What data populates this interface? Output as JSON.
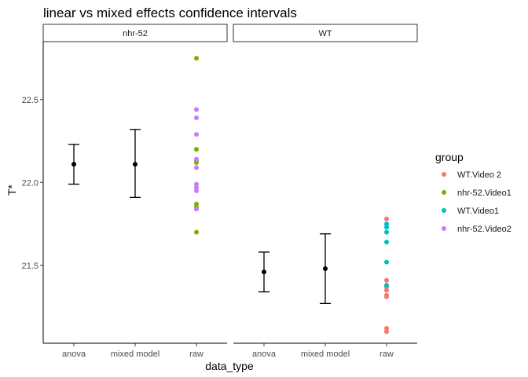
{
  "chart_data": {
    "type": "scatter",
    "title": "linear vs mixed effects confidence intervals",
    "xlabel": "data_type",
    "ylabel": "T*",
    "categories": [
      "anova",
      "mixed model",
      "raw"
    ],
    "ylim": [
      21.03,
      22.85
    ],
    "yticks": [
      21.5,
      22.0,
      22.5
    ],
    "ytick_labels": [
      "21.5",
      "22.0",
      "22.5"
    ],
    "grid": false,
    "legend": {
      "title": "group",
      "position": "right",
      "entries": [
        {
          "label": "WT.Video 2",
          "color": "#F8766D"
        },
        {
          "label": "nhr-52.Video1",
          "color": "#7CAE00"
        },
        {
          "label": "WT.Video1",
          "color": "#00BFC4"
        },
        {
          "label": "nhr-52.Video2",
          "color": "#C77CFF"
        }
      ]
    },
    "facets": [
      {
        "label": "nhr-52",
        "intervals": [
          {
            "category": "anova",
            "mean": 22.11,
            "lower": 21.99,
            "upper": 22.23
          },
          {
            "category": "mixed model",
            "mean": 22.11,
            "lower": 21.91,
            "upper": 22.32
          }
        ],
        "raw_points": [
          {
            "group": "nhr-52.Video1",
            "values": [
              22.75,
              22.2,
              22.13,
              22.12,
              21.87,
              21.85,
              21.7
            ]
          },
          {
            "group": "nhr-52.Video2",
            "values": [
              22.44,
              22.39,
              22.29,
              22.14,
              22.09,
              21.99,
              21.97,
              21.95,
              21.84
            ]
          }
        ]
      },
      {
        "label": "WT",
        "intervals": [
          {
            "category": "anova",
            "mean": 21.46,
            "lower": 21.34,
            "upper": 21.58
          },
          {
            "category": "mixed model",
            "mean": 21.48,
            "lower": 21.27,
            "upper": 21.69
          }
        ],
        "raw_points": [
          {
            "group": "WT.Video 2",
            "values": [
              21.78,
              21.41,
              21.37,
              21.35,
              21.32,
              21.31,
              21.12,
              21.1
            ]
          },
          {
            "group": "WT.Video1",
            "values": [
              21.75,
              21.73,
              21.7,
              21.64,
              21.52,
              21.38
            ]
          }
        ]
      }
    ]
  }
}
